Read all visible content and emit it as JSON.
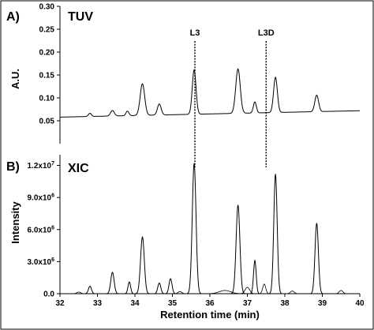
{
  "chart_data": [
    {
      "panel": "A)",
      "type": "line",
      "detector_label": "TUV",
      "ylabel": "A.U.",
      "xlabel": "",
      "xlim": [
        32,
        40
      ],
      "ylim": [
        0,
        0.3
      ],
      "y_ticks": [
        "0.05",
        "0.10",
        "0.15",
        "0.20",
        "0.25",
        "0.30"
      ],
      "y_tick_values": [
        0.05,
        0.1,
        0.15,
        0.2,
        0.25,
        0.3
      ],
      "markers": [
        {
          "label": "L3",
          "x": 35.6
        },
        {
          "label": "L3D",
          "x": 37.5
        }
      ],
      "baseline": 0.058,
      "peaks": [
        {
          "x": 32.8,
          "y": 0.065,
          "w": 0.04
        },
        {
          "x": 33.4,
          "y": 0.07,
          "w": 0.05
        },
        {
          "x": 33.8,
          "y": 0.068,
          "w": 0.04
        },
        {
          "x": 34.2,
          "y": 0.127,
          "w": 0.06
        },
        {
          "x": 34.65,
          "y": 0.082,
          "w": 0.05
        },
        {
          "x": 35.58,
          "y": 0.155,
          "w": 0.05
        },
        {
          "x": 36.75,
          "y": 0.155,
          "w": 0.06
        },
        {
          "x": 37.2,
          "y": 0.082,
          "w": 0.04
        },
        {
          "x": 37.75,
          "y": 0.135,
          "w": 0.05
        },
        {
          "x": 38.85,
          "y": 0.094,
          "w": 0.05
        }
      ],
      "series": [
        {
          "name": "",
          "x": [
            32.0,
            32.8,
            33.4,
            34.2,
            34.65,
            35.58,
            36.75,
            37.2,
            37.75,
            38.85,
            40.0
          ],
          "y": [
            0.057,
            0.065,
            0.07,
            0.127,
            0.082,
            0.155,
            0.155,
            0.082,
            0.135,
            0.094,
            0.074
          ]
        }
      ]
    },
    {
      "panel": "B)",
      "type": "line",
      "detector_label": "XIC",
      "ylabel": "Intensity",
      "xlabel": "Retention time (min)",
      "xlim": [
        32,
        40
      ],
      "ylim": [
        0,
        13000000
      ],
      "x_ticks": [
        "32",
        "33",
        "34",
        "35",
        "36",
        "37",
        "38",
        "39",
        "40"
      ],
      "y_tick_values": [
        0,
        3000000,
        6000000,
        9000000,
        12000000
      ],
      "y_tick_mantissa": [
        "0.0",
        "3.0x10",
        "6.0x10",
        "9.0x10",
        "1.2x10"
      ],
      "y_tick_exponent": [
        "",
        "6",
        "6",
        "6",
        "7"
      ],
      "series": [
        {
          "name": "",
          "peaks": [
            {
              "x": 32.8,
              "y": 700000,
              "w": 0.04
            },
            {
              "x": 33.4,
              "y": 2000000,
              "w": 0.045
            },
            {
              "x": 33.85,
              "y": 1100000,
              "w": 0.035
            },
            {
              "x": 34.2,
              "y": 5300000,
              "w": 0.05
            },
            {
              "x": 34.65,
              "y": 1000000,
              "w": 0.04
            },
            {
              "x": 34.95,
              "y": 1400000,
              "w": 0.04
            },
            {
              "x": 35.58,
              "y": 12200000,
              "w": 0.05
            },
            {
              "x": 36.75,
              "y": 8300000,
              "w": 0.05
            },
            {
              "x": 37.2,
              "y": 3100000,
              "w": 0.035
            },
            {
              "x": 37.75,
              "y": 11200000,
              "w": 0.045
            },
            {
              "x": 38.85,
              "y": 6600000,
              "w": 0.045
            }
          ]
        },
        {
          "name": "",
          "peaks": [
            {
              "x": 36.4,
              "y": 300000,
              "w": 0.15
            },
            {
              "x": 37.0,
              "y": 600000,
              "w": 0.06
            },
            {
              "x": 37.45,
              "y": 900000,
              "w": 0.04
            },
            {
              "x": 38.2,
              "y": 250000,
              "w": 0.05
            },
            {
              "x": 39.5,
              "y": 300000,
              "w": 0.05
            },
            {
              "x": 35.2,
              "y": 200000,
              "w": 0.05
            },
            {
              "x": 32.5,
              "y": 150000,
              "w": 0.05
            }
          ]
        }
      ]
    }
  ]
}
